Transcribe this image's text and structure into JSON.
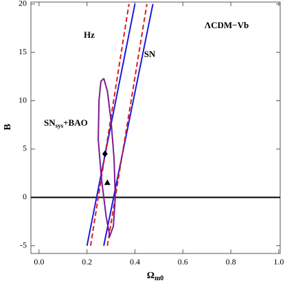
{
  "chart_data": {
    "type": "line",
    "annotations": [
      {
        "text": "ΛCDM−Vb"
      },
      {
        "text": "Hz"
      },
      {
        "text": "SN"
      },
      {
        "text": "SN",
        "sub": "sys",
        "after": "+BAO"
      }
    ],
    "xlabel": {
      "text": "Ω",
      "sub": "m0"
    },
    "ylabel": "B",
    "xlim": [
      -0.034,
      1.006
    ],
    "ylim": [
      -5.8,
      20.2
    ],
    "xticks": [
      {
        "value": 0,
        "label": "0.0"
      },
      {
        "value": 0.2,
        "label": "0.2"
      },
      {
        "value": 0.4,
        "label": "0.4"
      },
      {
        "value": 0.6,
        "label": "0.6"
      },
      {
        "value": 0.8,
        "label": "0.8"
      },
      {
        "value": 1,
        "label": "1.0"
      }
    ],
    "yticks": [
      -5,
      0,
      5,
      10,
      15,
      20
    ],
    "hline": 0,
    "series": [
      {
        "color": "#1a1adb",
        "dashed": false,
        "x": [
          0.2,
          0.4
        ],
        "y": [
          -5,
          20
        ]
      },
      {
        "color": "#1a1adb",
        "dashed": false,
        "x": [
          0.27,
          0.475
        ],
        "y": [
          -5,
          20
        ]
      },
      {
        "color": "#e0191f",
        "dashed": true,
        "x": [
          0.215,
          0.375
        ],
        "y": [
          -5,
          20
        ]
      },
      {
        "color": "#e0191f",
        "dashed": true,
        "x": [
          0.285,
          0.45
        ],
        "y": [
          -5,
          20
        ]
      },
      {
        "color": "#7b1a8f",
        "dashed": false,
        "x": [
          0.27,
          0.285,
          0.3,
          0.313,
          0.318,
          0.31,
          0.295,
          0.28,
          0.26,
          0.247,
          0.25,
          0.258,
          0.27
        ],
        "y": [
          12.3,
          11,
          8,
          4,
          0,
          -3,
          -4,
          -2,
          2,
          6,
          10,
          12,
          12.3
        ]
      }
    ],
    "points": [
      {
        "marker": "diamond",
        "x": 0.275,
        "y": 4.5
      },
      {
        "marker": "triangle",
        "x": 0.285,
        "y": 1.5
      }
    ]
  }
}
